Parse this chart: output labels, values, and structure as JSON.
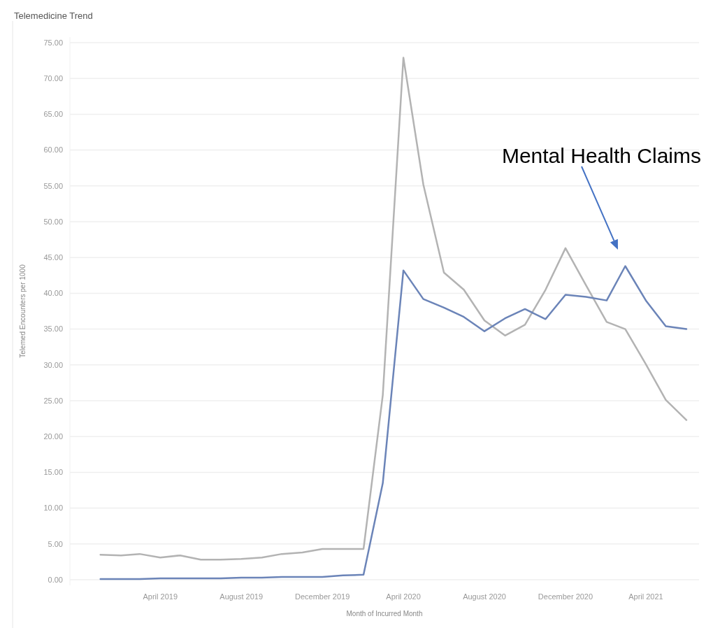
{
  "chart_data": {
    "type": "line",
    "title": "Telemedicine Trend",
    "xlabel": "Month of Incurred Month",
    "ylabel": "Telemed Encounters per 1000",
    "x": [
      "2019-01",
      "2019-02",
      "2019-03",
      "2019-04",
      "2019-05",
      "2019-06",
      "2019-07",
      "2019-08",
      "2019-09",
      "2019-10",
      "2019-11",
      "2019-12",
      "2020-01",
      "2020-02",
      "2020-03",
      "2020-04",
      "2020-05",
      "2020-06",
      "2020-07",
      "2020-08",
      "2020-09",
      "2020-10",
      "2020-11",
      "2020-12",
      "2021-01",
      "2021-02",
      "2021-03",
      "2021-04",
      "2021-05",
      "2021-06"
    ],
    "series": [
      {
        "color": "#b3b3b3",
        "values": [
          3.5,
          3.4,
          3.6,
          3.1,
          3.4,
          2.8,
          2.8,
          2.9,
          3.1,
          3.6,
          3.8,
          4.3,
          4.3,
          4.3,
          25.8,
          72.9,
          55.2,
          42.9,
          40.5,
          36.2,
          34.1,
          35.6,
          40.5,
          46.3,
          41.1,
          36.0,
          35.0,
          30.1,
          25.1,
          22.3
        ]
      },
      {
        "color": "#6b84b8",
        "values": [
          0.1,
          0.1,
          0.1,
          0.2,
          0.2,
          0.2,
          0.2,
          0.3,
          0.3,
          0.4,
          0.4,
          0.4,
          0.6,
          0.7,
          13.5,
          43.2,
          39.2,
          38.0,
          36.7,
          34.7,
          36.5,
          37.8,
          36.4,
          39.8,
          39.5,
          39.0,
          43.8,
          39.0,
          35.4,
          35.0
        ]
      }
    ],
    "xlim": [
      "2018-11-16",
      "2021-06-20"
    ],
    "xticks": [
      {
        "value": "2019-04",
        "label": "April 2019"
      },
      {
        "value": "2019-08",
        "label": "August 2019"
      },
      {
        "value": "2019-12",
        "label": "December 2019"
      },
      {
        "value": "2020-04",
        "label": "April 2020"
      },
      {
        "value": "2020-08",
        "label": "August 2020"
      },
      {
        "value": "2020-12",
        "label": "December 2020"
      },
      {
        "value": "2021-04",
        "label": "April 2021"
      }
    ],
    "ylim": [
      0,
      75
    ],
    "yticks": [
      {
        "value": 0,
        "label": "0.00"
      },
      {
        "value": 5,
        "label": "5.00"
      },
      {
        "value": 10,
        "label": "10.00"
      },
      {
        "value": 15,
        "label": "15.00"
      },
      {
        "value": 20,
        "label": "20.00"
      },
      {
        "value": 25,
        "label": "25.00"
      },
      {
        "value": 30,
        "label": "30.00"
      },
      {
        "value": 35,
        "label": "35.00"
      },
      {
        "value": 40,
        "label": "40.00"
      },
      {
        "value": 45,
        "label": "45.00"
      },
      {
        "value": 50,
        "label": "50.00"
      },
      {
        "value": 55,
        "label": "55.00"
      },
      {
        "value": 60,
        "label": "60.00"
      },
      {
        "value": 65,
        "label": "65.00"
      },
      {
        "value": 70,
        "label": "70.00"
      },
      {
        "value": 75,
        "label": "75.00"
      }
    ],
    "grid": "y",
    "marker": "none",
    "line_style": "solid",
    "annotations": [
      "Mental Health Claims"
    ]
  }
}
